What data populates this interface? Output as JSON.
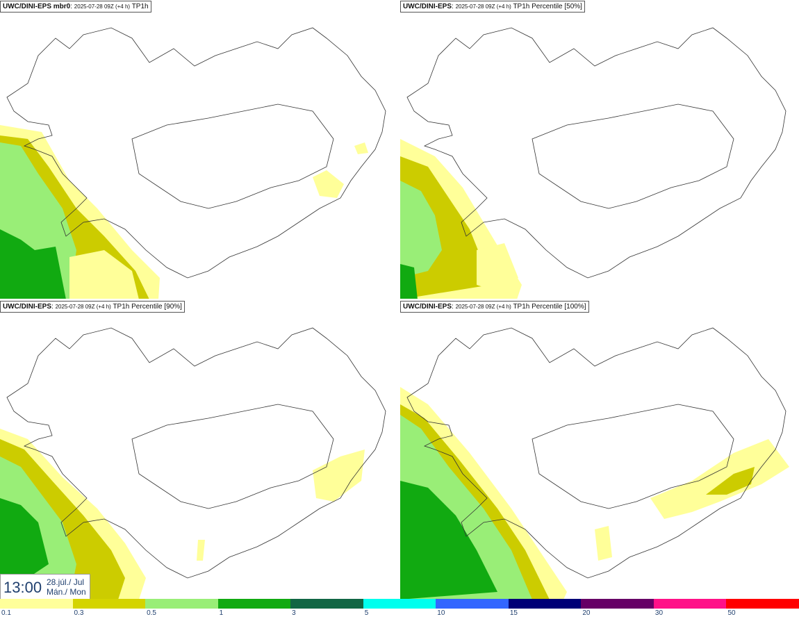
{
  "panels": [
    {
      "model": "UWC/DINI-EPS mbr0",
      "date": "2025-07-28 09Z (+4 h)",
      "field": "TP1h"
    },
    {
      "model": "UWC/DINI-EPS",
      "date": "2025-07-28 09Z (+4 h)",
      "field": "TP1h Percentile [50%]"
    },
    {
      "model": "UWC/DINI-EPS",
      "date": "2025-07-28 09Z (+4 h)",
      "field": "TP1h Percentile [90%]"
    },
    {
      "model": "UWC/DINI-EPS",
      "date": "2025-07-28 09Z (+4 h)",
      "field": "TP1h Percentile [100%]"
    }
  ],
  "time": {
    "clock": "13:00",
    "date_line": "28.júl./ Jul",
    "day_line": "Mán./ Mon"
  },
  "legend": {
    "colors": [
      "#ffff9a",
      "#d4d400",
      "#99ee77",
      "#11aa11",
      "#116644",
      "#00ffee",
      "#3366ff",
      "#000077",
      "#660066",
      "#ff1188",
      "#ff0000"
    ],
    "ticks": [
      "0.1",
      "0.3",
      "0.5",
      "1",
      "3",
      "5",
      "10",
      "15",
      "20",
      "30",
      "50"
    ]
  },
  "map_colors": {
    "light_yellow": "#ffff99",
    "olive": "#cccc00",
    "light_green": "#99ee77",
    "green": "#11aa11",
    "coast": "#333333"
  }
}
